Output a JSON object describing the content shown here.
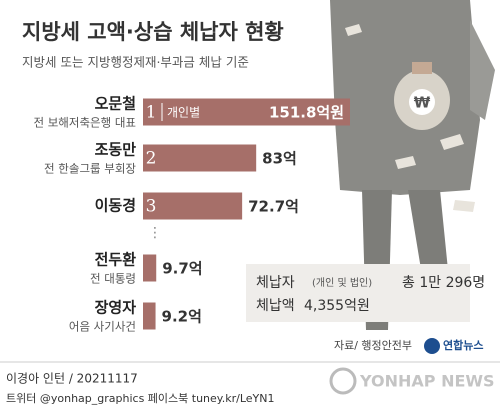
{
  "chart_data": {
    "type": "bar",
    "orientation": "horizontal",
    "title": "지방세 고액·상습 체납자 현황",
    "subtitle": "지방세 또는 지방행정제재·부과금 체납 기준",
    "categories": [
      "오문철",
      "조동만",
      "이동경",
      "전두환",
      "장영자"
    ],
    "descriptions": [
      "전 보해저축은행 대표",
      "전 한솔그룹 부회장",
      null,
      "전 대통령",
      "어음 사기사건"
    ],
    "ranks": [
      1,
      2,
      3,
      null,
      null
    ],
    "bar_note": "개인별",
    "values": [
      151.8,
      83,
      72.7,
      9.7,
      9.2
    ],
    "value_labels": [
      "151.8억원",
      "83억",
      "72.7억",
      "9.7억",
      "9.2억"
    ],
    "color": "#a66f69"
  },
  "summary": {
    "label1": "체납자",
    "note": "(개인 및 법인)",
    "text1": "총 1만 296명",
    "label2": "체납액",
    "text2": "4,355억원"
  },
  "source": "자료/ 행정안전부",
  "logo": "연합뉴스",
  "footer": {
    "author": "이경아 인턴 / 20211117",
    "social": "트위터 @yonhap_graphics  페이스북 tuney.kr/LeYN1"
  },
  "watermark": "YONHAP NEWS"
}
